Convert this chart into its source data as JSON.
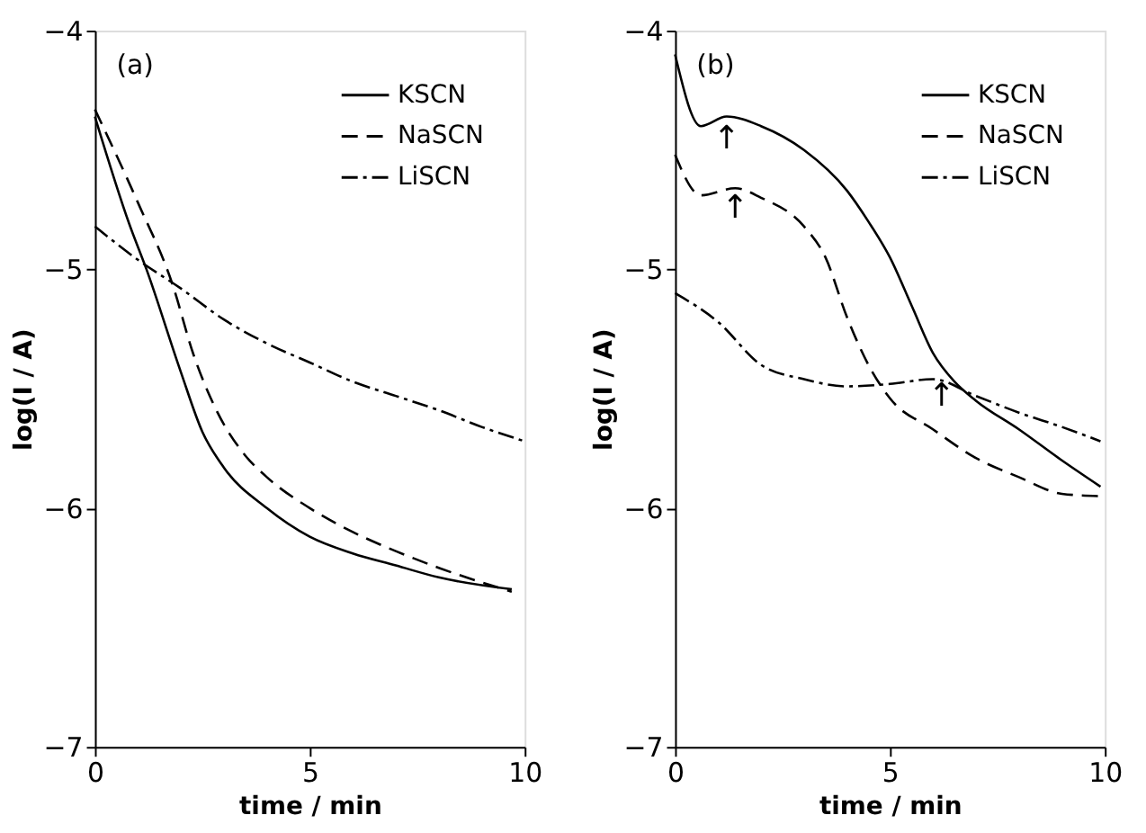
{
  "chart_data": [
    {
      "type": "line",
      "xlabel": "time / min",
      "ylabel": "log(I / A)",
      "xlim": [
        0,
        10
      ],
      "ylim": [
        -7,
        -4
      ],
      "xticks": [
        0,
        5,
        10
      ],
      "yticks": [
        -7,
        -6,
        -5,
        -4
      ],
      "grid": false,
      "legend": "top right",
      "marker": "none",
      "annotations": [
        "(a)"
      ],
      "series": [
        {
          "name": "KSCN",
          "color": "#000000",
          "line_style": "solid",
          "x": [
            0,
            0.8,
            1.2,
            2,
            2.5,
            3,
            4,
            5,
            6,
            7,
            8,
            9.7
          ],
          "values": [
            -4.36,
            -4.81,
            -5.0,
            -5.43,
            -5.68,
            -5.83,
            -6.0,
            -6.12,
            -6.19,
            -6.24,
            -6.29,
            -6.34
          ]
        },
        {
          "name": "NaSCN",
          "color": "#000000",
          "line_style": "dashed",
          "x": [
            0,
            1,
            1.8,
            2.3,
            2.8,
            3.5,
            4,
            5,
            6,
            7,
            8,
            9.7
          ],
          "values": [
            -4.33,
            -4.72,
            -5.06,
            -5.36,
            -5.58,
            -5.78,
            -5.87,
            -6.0,
            -6.1,
            -6.18,
            -6.25,
            -6.35
          ]
        },
        {
          "name": "LiSCN",
          "color": "#000000",
          "line_style": "dashdot",
          "x": [
            0,
            1,
            2,
            3,
            4,
            5,
            6,
            7,
            8,
            9,
            10
          ],
          "values": [
            -4.82,
            -4.96,
            -5.08,
            -5.21,
            -5.31,
            -5.39,
            -5.47,
            -5.53,
            -5.59,
            -5.66,
            -5.72
          ]
        }
      ]
    },
    {
      "type": "line",
      "xlabel": "time / min",
      "ylabel": "log(I / A)",
      "xlim": [
        0,
        10
      ],
      "ylim": [
        -7,
        -4
      ],
      "xticks": [
        0,
        5,
        10
      ],
      "yticks": [
        -7,
        -6,
        -5,
        -4
      ],
      "grid": false,
      "legend": "top right",
      "marker": "none",
      "annotations": [
        "(b)",
        {
          "text": "↑",
          "x": 1.2,
          "y": -4.38
        },
        {
          "text": "↑",
          "x": 1.4,
          "y": -4.67
        },
        {
          "text": "↑",
          "x": 6.2,
          "y": -5.46
        }
      ],
      "series": [
        {
          "name": "KSCN",
          "color": "#000000",
          "line_style": "solid",
          "x": [
            0,
            0.6,
            1.2,
            2,
            3,
            4,
            4.5,
            5,
            5.5,
            6,
            6.5,
            7,
            8,
            9,
            9.9
          ],
          "values": [
            -4.1,
            -4.4,
            -4.36,
            -4.4,
            -4.5,
            -4.67,
            -4.8,
            -4.95,
            -5.15,
            -5.35,
            -5.47,
            -5.55,
            -5.67,
            -5.8,
            -5.91
          ]
        },
        {
          "name": "NaSCN",
          "color": "#000000",
          "line_style": "dashed",
          "x": [
            0,
            0.6,
            1.4,
            2,
            3,
            3.5,
            4,
            4.5,
            5,
            6,
            7,
            8,
            9,
            9.9
          ],
          "values": [
            -4.52,
            -4.69,
            -4.66,
            -4.7,
            -4.82,
            -4.95,
            -5.2,
            -5.4,
            -5.54,
            -5.67,
            -5.79,
            -5.87,
            -5.94,
            -5.95
          ]
        },
        {
          "name": "LiSCN",
          "color": "#000000",
          "line_style": "dashdot",
          "x": [
            0,
            1,
            2,
            3,
            4,
            5,
            6,
            7,
            8,
            9,
            9.9
          ],
          "values": [
            -5.1,
            -5.22,
            -5.4,
            -5.46,
            -5.49,
            -5.48,
            -5.46,
            -5.53,
            -5.6,
            -5.66,
            -5.72
          ]
        }
      ]
    }
  ]
}
